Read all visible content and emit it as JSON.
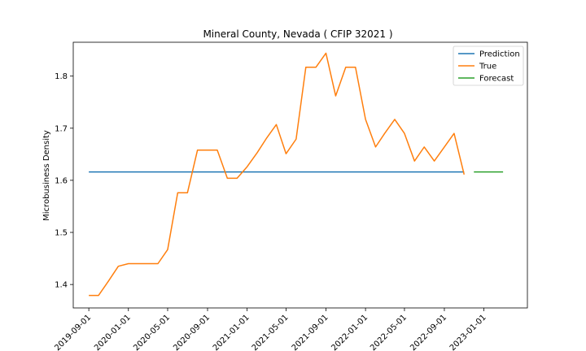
{
  "chart_data": {
    "type": "line",
    "title": "Mineral County, Nevada ( CFIP 32021 )",
    "xlabel": "",
    "ylabel": "Microbusiness Density",
    "x_ticks": [
      "2019-09-01",
      "2020-01-01",
      "2020-05-01",
      "2020-09-01",
      "2021-01-01",
      "2021-05-01",
      "2021-09-01",
      "2022-01-01",
      "2022-05-01",
      "2022-09-01",
      "2023-01-01"
    ],
    "y_ticks": [
      "1.4",
      "1.5",
      "1.6",
      "1.7",
      "1.8"
    ],
    "xlim": [
      "2019-07-15",
      "2023-05-15"
    ],
    "ylim": [
      1.355,
      1.865
    ],
    "legend_position": "top-right",
    "grid": false,
    "series": [
      {
        "name": "Prediction",
        "color": "#1f77b4",
        "x": [
          "2019-09-01",
          "2022-11-01"
        ],
        "y": [
          1.616,
          1.616
        ]
      },
      {
        "name": "True",
        "color": "#ff7f0e",
        "x": [
          "2019-09-01",
          "2019-10-01",
          "2019-11-01",
          "2019-12-01",
          "2020-01-01",
          "2020-02-01",
          "2020-03-01",
          "2020-04-01",
          "2020-05-01",
          "2020-06-01",
          "2020-07-01",
          "2020-08-01",
          "2020-09-01",
          "2020-10-01",
          "2020-11-01",
          "2020-12-01",
          "2021-01-01",
          "2021-02-01",
          "2021-03-01",
          "2021-04-01",
          "2021-05-01",
          "2021-06-01",
          "2021-07-01",
          "2021-08-01",
          "2021-09-01",
          "2021-10-01",
          "2021-11-01",
          "2021-12-01",
          "2022-01-01",
          "2022-02-01",
          "2022-03-01",
          "2022-04-01",
          "2022-05-01",
          "2022-06-01",
          "2022-07-01",
          "2022-08-01",
          "2022-09-01",
          "2022-10-01",
          "2022-11-01"
        ],
        "y": [
          1.379,
          1.379,
          1.407,
          1.435,
          1.44,
          1.44,
          1.44,
          1.44,
          1.467,
          1.576,
          1.576,
          1.658,
          1.658,
          1.658,
          1.604,
          1.604,
          1.626,
          1.653,
          1.68,
          1.707,
          1.651,
          1.679,
          1.817,
          1.817,
          1.844,
          1.762,
          1.817,
          1.817,
          1.717,
          1.664,
          1.69,
          1.717,
          1.69,
          1.637,
          1.664,
          1.637,
          1.664,
          1.69,
          1.611
        ]
      },
      {
        "name": "Forecast",
        "color": "#2ca02c",
        "x": [
          "2022-12-01",
          "2023-03-01"
        ],
        "y": [
          1.616,
          1.616
        ]
      }
    ]
  }
}
